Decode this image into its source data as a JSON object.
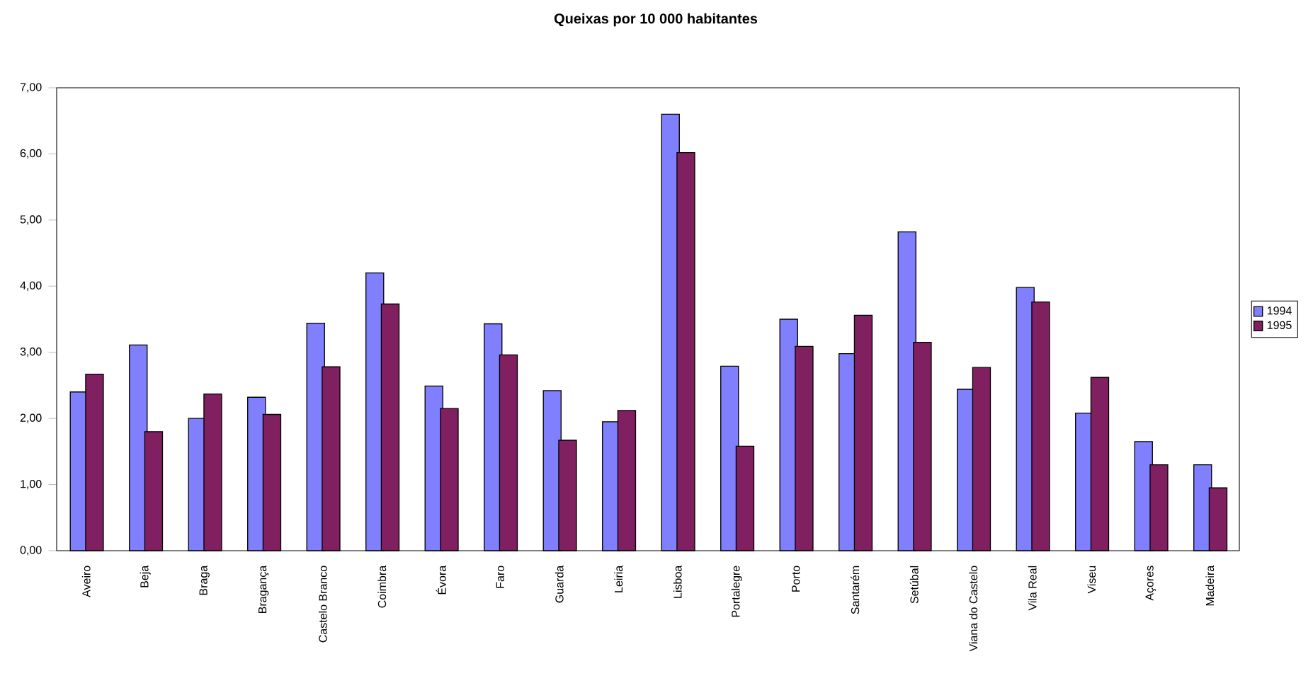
{
  "chart_data": {
    "type": "bar",
    "title": "Queixas por 10 000 habitantes",
    "categories": [
      "Aveiro",
      "Beja",
      "Braga",
      "Bragança",
      "Castelo Branco",
      "Coimbra",
      "Évora",
      "Faro",
      "Guarda",
      "Leiria",
      "Lisboa",
      "Portalegre",
      "Porto",
      "Santarém",
      "Setúbal",
      "Viana do Castelo",
      "Vila Real",
      "Viseu",
      "Açores",
      "Madeira"
    ],
    "series": [
      {
        "name": "1994",
        "color": "#8080ff",
        "values": [
          2.4,
          3.11,
          2.0,
          2.32,
          3.44,
          4.2,
          2.49,
          3.43,
          2.42,
          1.95,
          6.6,
          2.79,
          3.5,
          2.98,
          4.82,
          2.44,
          3.98,
          2.08,
          1.65,
          1.3
        ]
      },
      {
        "name": "1995",
        "color": "#802060",
        "values": [
          2.67,
          1.8,
          2.37,
          2.06,
          2.78,
          3.73,
          2.15,
          2.96,
          1.67,
          2.12,
          6.02,
          1.58,
          3.09,
          3.56,
          3.15,
          2.77,
          3.76,
          2.62,
          1.3,
          0.95
        ]
      }
    ],
    "ylim": [
      0,
      7
    ],
    "yticks": [
      {
        "value": 0,
        "label": "0,00"
      },
      {
        "value": 1,
        "label": "1,00"
      },
      {
        "value": 2,
        "label": "2,00"
      },
      {
        "value": 3,
        "label": "3,00"
      },
      {
        "value": 4,
        "label": "4,00"
      },
      {
        "value": 5,
        "label": "5,00"
      },
      {
        "value": 6,
        "label": "6,00"
      },
      {
        "value": 7,
        "label": "7,00"
      }
    ],
    "legend": "right"
  }
}
